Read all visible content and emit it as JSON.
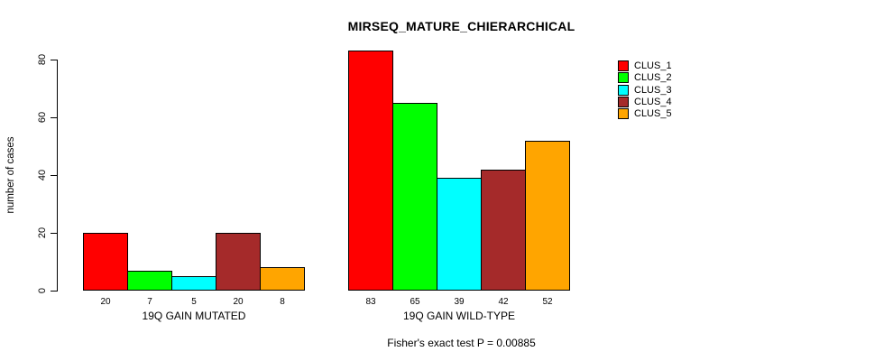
{
  "window": {
    "background": "#FFFFFF"
  },
  "chart_data": {
    "type": "bar",
    "title": "MIRSEQ_MATURE_CHIERARCHICAL",
    "ylabel": "number of cases",
    "xlabel": "",
    "ylim": [
      0,
      80
    ],
    "yticks": [
      0,
      20,
      40,
      60,
      80
    ],
    "grid": false,
    "legend_position": "top-right-outside",
    "series": [
      "CLUS_1",
      "CLUS_2",
      "CLUS_3",
      "CLUS_4",
      "CLUS_5"
    ],
    "colors": [
      "#FF0000",
      "#00FF00",
      "#00FFFF",
      "#A52A2A",
      "#FFA500"
    ],
    "bar_border_color": "#000000",
    "groups": [
      {
        "label": "19Q GAIN MUTATED",
        "values": [
          20,
          7,
          5,
          20,
          8
        ]
      },
      {
        "label": "19Q GAIN WILD-TYPE",
        "values": [
          83,
          65,
          39,
          42,
          52
        ]
      }
    ],
    "annotation": "Fisher's exact test P = 0.00885"
  }
}
